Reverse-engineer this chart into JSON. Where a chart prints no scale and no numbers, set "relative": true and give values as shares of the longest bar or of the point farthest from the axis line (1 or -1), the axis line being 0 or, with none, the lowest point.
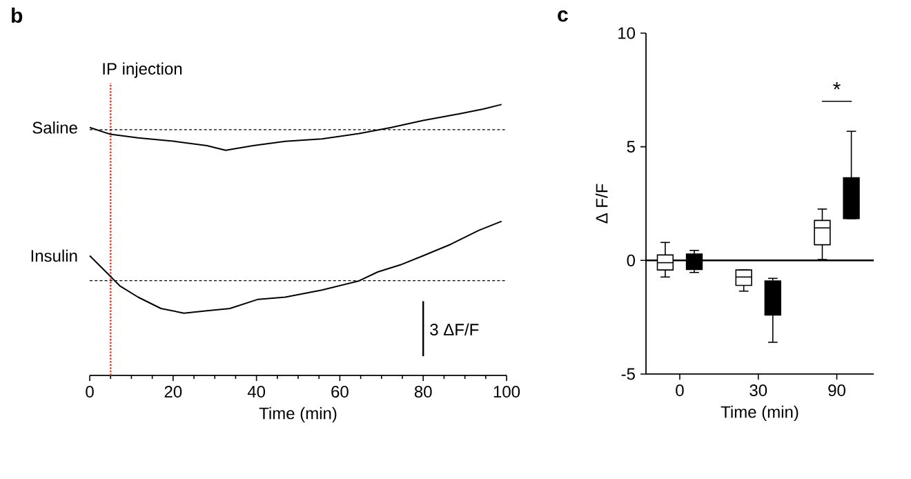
{
  "chart_data": [
    {
      "type": "line",
      "title": "b",
      "xlabel": "Time (min)",
      "relative": true,
      "xlim": [
        0,
        100
      ],
      "xticks": [
        0,
        {
          "value": 5,
          "label": null
        },
        {
          "value": 10,
          "label": null
        },
        {
          "value": 15,
          "label": null
        },
        20,
        {
          "value": 25,
          "label": null
        },
        {
          "value": 30,
          "label": null
        },
        {
          "value": 35,
          "label": null
        },
        40,
        {
          "value": 45,
          "label": null
        },
        {
          "value": 50,
          "label": null
        },
        {
          "value": 55,
          "label": null
        },
        60,
        {
          "value": 65,
          "label": null
        },
        {
          "value": 70,
          "label": null
        },
        {
          "value": 75,
          "label": null
        },
        80,
        {
          "value": 85,
          "label": null
        },
        {
          "value": 90,
          "label": null
        },
        {
          "value": 95,
          "label": null
        },
        100
      ],
      "annotations": [
        "3 ΔF/F"
      ],
      "ref_lines": [
        {
          "axis": "x",
          "value": 5,
          "label": "IP injection",
          "color": "#e8432a",
          "line_style": "dotted"
        },
        {
          "axis": "y",
          "value": 0.907,
          "color": "#000000",
          "line_style": "dashed"
        },
        {
          "axis": "y",
          "value": 0.35,
          "color": "#000000",
          "line_style": "dashed"
        }
      ],
      "series": [
        {
          "name": "Saline",
          "color": "#000000",
          "x": [
            0,
            5.0,
            11.6,
            20.4,
            28.1,
            32.6,
            39.2,
            46.9,
            55.7,
            64.6,
            72.3,
            80.0,
            88.8,
            94.4,
            98.8
          ],
          "values": [
            0.915,
            0.89,
            0.877,
            0.864,
            0.848,
            0.831,
            0.848,
            0.864,
            0.873,
            0.893,
            0.915,
            0.941,
            0.966,
            0.983,
            1.0
          ]
        },
        {
          "name": "Insulin",
          "color": "#000000",
          "x": [
            0,
            3.9,
            7.2,
            11.6,
            17.1,
            22.6,
            28.1,
            33.6,
            40.4,
            46.9,
            55.7,
            64.6,
            69.1,
            74.5,
            80.0,
            86.6,
            93.3,
            98.8
          ],
          "values": [
            0.442,
            0.382,
            0.331,
            0.289,
            0.247,
            0.23,
            0.239,
            0.247,
            0.281,
            0.289,
            0.315,
            0.349,
            0.382,
            0.408,
            0.442,
            0.484,
            0.535,
            0.569
          ]
        }
      ]
    },
    {
      "type": "box",
      "title": "c",
      "xlabel": "Time (min)",
      "ylabel": "Δ F/F",
      "categories": [
        "0",
        "30",
        "90"
      ],
      "ylim": [
        -5,
        10
      ],
      "yticks": [
        -5,
        0,
        5,
        10
      ],
      "annotations": [
        "*"
      ],
      "ref_lines": [
        {
          "axis": "y",
          "value": 0,
          "color": "#000000",
          "line_style": "solid"
        }
      ],
      "series": [
        {
          "color": "#ffffff",
          "boxes": [
            {
              "low": -0.73,
              "q1": -0.42,
              "median": -0.1,
              "q3": 0.24,
              "high": 0.79
            },
            {
              "low": -1.35,
              "q1": -1.1,
              "median": -0.73,
              "q3": -0.42,
              "high": -0.42
            },
            {
              "low": 0.04,
              "q1": 0.69,
              "median": 1.43,
              "q3": 1.76,
              "high": 2.26
            }
          ]
        },
        {
          "color": "#000000",
          "boxes": [
            {
              "low": -0.53,
              "q1": -0.4,
              "median": -0.06,
              "q3": 0.28,
              "high": 0.44
            },
            {
              "low": -3.6,
              "q1": -2.4,
              "median": -1.2,
              "q3": -0.9,
              "high": -0.79
            },
            {
              "low": 1.84,
              "q1": 1.84,
              "median": 2.67,
              "q3": 3.64,
              "high": 5.68
            }
          ]
        }
      ]
    }
  ]
}
